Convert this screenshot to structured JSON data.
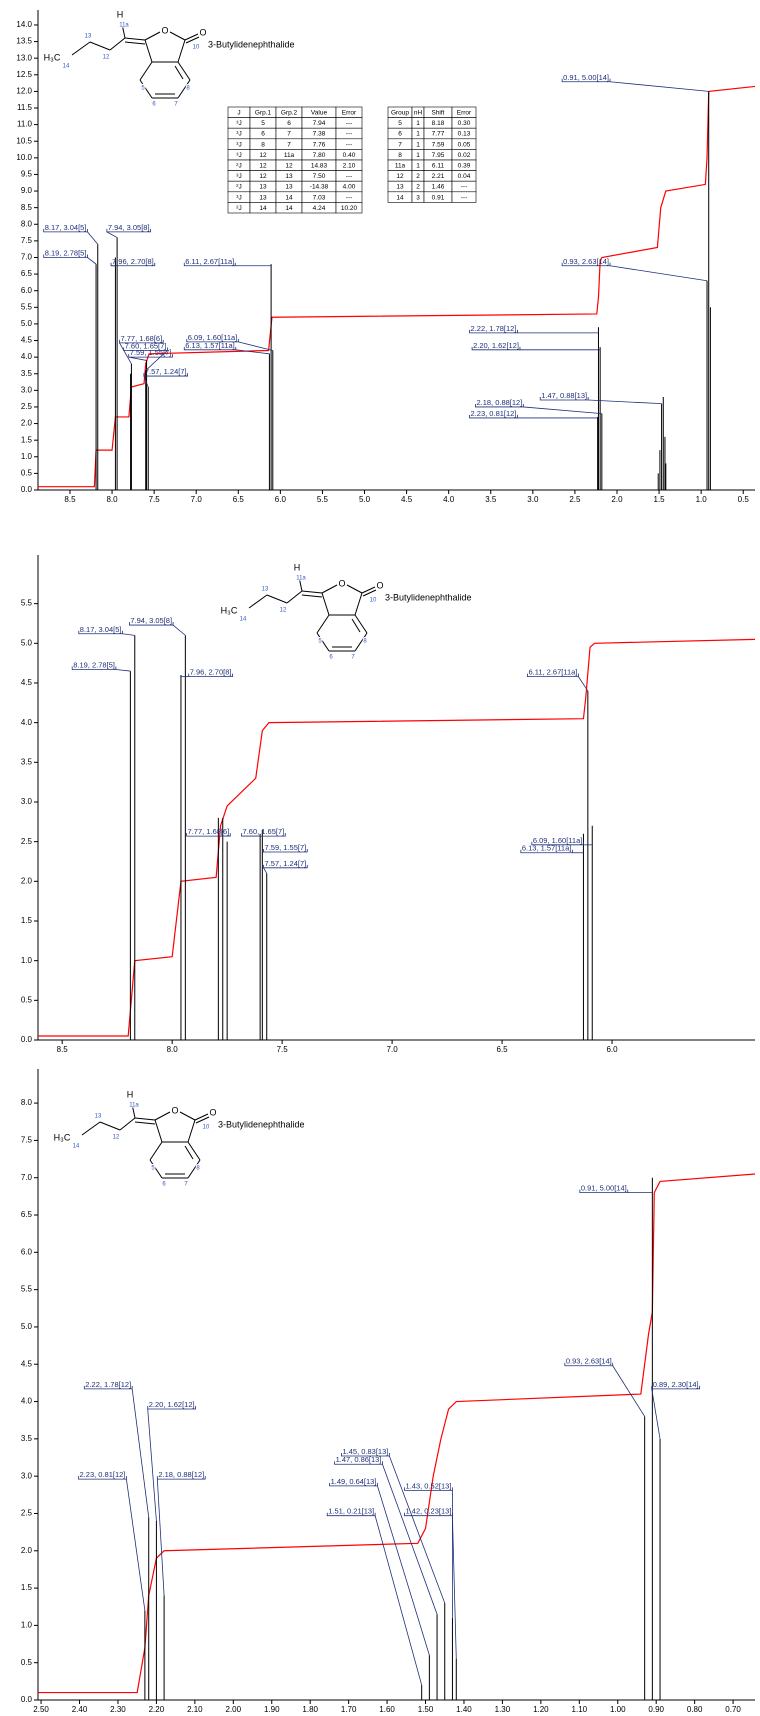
{
  "chart_data": [
    {
      "type": "spectrum",
      "xlim": [
        8.88,
        0.36
      ],
      "ylim": [
        0,
        14.3
      ],
      "xticks": [
        8.5,
        {
          "value": 8,
          "label": "8.0"
        },
        7.5,
        {
          "value": 7,
          "label": "7.0"
        },
        6.5,
        {
          "value": 6,
          "label": "6.0"
        },
        5.5,
        {
          "value": 5,
          "label": "5.0"
        },
        4.5,
        {
          "value": 4,
          "label": "4.0"
        },
        3.5,
        {
          "value": 3,
          "label": "3.0"
        },
        2.5,
        {
          "value": 2,
          "label": "2.0"
        },
        1.5,
        {
          "value": 1,
          "label": "1.0"
        },
        0.5
      ],
      "yticks": [
        {
          "value": 0,
          "label": "0.0"
        },
        0.5,
        {
          "value": 1,
          "label": "1.0"
        },
        1.5,
        {
          "value": 2,
          "label": "2.0"
        },
        2.5,
        {
          "value": 3,
          "label": "3.0"
        },
        3.5,
        {
          "value": 4,
          "label": "4.0"
        },
        4.5,
        {
          "value": 5,
          "label": "5.0"
        },
        5.5,
        {
          "value": 6,
          "label": "6.0"
        },
        6.5,
        {
          "value": 7,
          "label": "7.0"
        },
        7.5,
        {
          "value": 8,
          "label": "8.0"
        },
        8.5,
        {
          "value": 9,
          "label": "9.0"
        },
        9.5,
        {
          "value": 10,
          "label": "10.0"
        },
        10.5,
        {
          "value": 11,
          "label": "11.0"
        },
        11.5,
        {
          "value": 12,
          "label": "12.0"
        },
        12.5,
        {
          "value": 13,
          "label": "13.0"
        },
        13.5,
        {
          "value": 14,
          "label": "14.0"
        }
      ],
      "peaks": {
        "color": "#000000",
        "x": [
          8.19,
          8.17,
          7.96,
          7.94,
          7.78,
          7.77,
          7.6,
          7.59,
          7.57,
          6.13,
          6.11,
          6.09,
          2.23,
          2.22,
          2.2,
          2.18,
          1.51,
          1.49,
          1.47,
          1.45,
          1.43,
          1.42,
          0.93,
          0.91,
          0.89
        ],
        "values": [
          6.8,
          7.4,
          7.0,
          7.6,
          3.5,
          3.8,
          3.6,
          3.9,
          3.1,
          4.1,
          6.8,
          4.2,
          2.2,
          4.9,
          4.3,
          2.3,
          0.5,
          1.2,
          2.6,
          2.8,
          1.6,
          0.8,
          6.3,
          12.0,
          5.5
        ]
      },
      "integral": {
        "color": "#ff0000",
        "x": [
          8.88,
          8.21,
          8.19,
          8.0,
          7.96,
          7.8,
          7.77,
          7.62,
          7.6,
          7.56,
          6.14,
          6.1,
          2.24,
          2.22,
          2.2,
          2.18,
          1.52,
          1.48,
          1.42,
          0.95,
          0.93,
          0.91,
          0.36
        ],
        "values": [
          0.1,
          0.1,
          1.2,
          1.2,
          2.2,
          2.2,
          3.1,
          3.2,
          3.8,
          4.1,
          4.2,
          5.2,
          5.3,
          5.8,
          6.9,
          7.0,
          7.3,
          8.5,
          9.0,
          9.2,
          10.0,
          12.0,
          12.15
        ]
      },
      "annotations": [
        {
          "text": "8.17, 3.04[5]",
          "x": 8.17,
          "tx": 8.8,
          "ty": 7.77
        },
        {
          "text": "8.19, 2.78[5]",
          "x": 8.19,
          "tx": 8.8,
          "ty": 7.0
        },
        {
          "text": "7.94, 3.05[8]",
          "x": 7.94,
          "tx": 8.05,
          "ty": 7.77
        },
        {
          "text": "7.96, 2.70[8]",
          "x": 7.96,
          "tx": 8.0,
          "ty": 6.75
        },
        {
          "text": "6.11, 2.67[11a]",
          "x": 6.11,
          "tx": 7.13,
          "ty": 6.75
        },
        {
          "text": "7.77, 1.68[6]",
          "x": 7.77,
          "tx": 7.9,
          "ty": 4.43
        },
        {
          "text": "7.60, 1.65[7]",
          "x": 7.6,
          "tx": 7.85,
          "ty": 4.2
        },
        {
          "text": "7.59, 1.55[7]",
          "x": 7.59,
          "tx": 7.79,
          "ty": 4.0
        },
        {
          "text": "7.57, 1.24[7]",
          "x": 7.57,
          "tx": 7.61,
          "ty": 3.43
        },
        {
          "text": "6.09, 1.60[11a]",
          "x": 6.09,
          "tx": 7.1,
          "ty": 4.46
        },
        {
          "text": "6.13, 1.57[11a]",
          "x": 6.13,
          "tx": 7.13,
          "ty": 4.22
        },
        {
          "text": "2.22, 1.78[12]",
          "x": 2.22,
          "tx": 3.74,
          "ty": 4.73
        },
        {
          "text": "2.20, 1.62[12]",
          "x": 2.2,
          "tx": 3.71,
          "ty": 4.22
        },
        {
          "text": "2.18, 0.88[12]",
          "x": 2.18,
          "tx": 3.67,
          "ty": 2.5
        },
        {
          "text": "2.23, 0.81[12]",
          "x": 2.23,
          "tx": 3.74,
          "ty": 2.17
        },
        {
          "text": "1.47, 0.88[13]",
          "x": 1.47,
          "tx": 2.9,
          "ty": 2.71
        },
        {
          "text": "0.91, 5.00[14]",
          "x": 0.91,
          "tx": 2.64,
          "ty": 12.29
        },
        {
          "text": "0.93, 2.63[14]",
          "x": 0.93,
          "tx": 2.64,
          "ty": 6.75
        }
      ],
      "structure": {
        "name": "3-Butylidenephthalide",
        "labels": [
          "H",
          "11a",
          "13",
          "12",
          "H₃C",
          "14",
          "O",
          "O",
          "10",
          "5",
          "6",
          "7",
          "8"
        ]
      },
      "tables": [
        {
          "header": [
            "J",
            "Grp.1",
            "Grp.2",
            "Value",
            "Error"
          ],
          "rows": [
            [
              "³J",
              "5",
              "6",
              "7.94",
              "---"
            ],
            [
              "³J",
              "6",
              "7",
              "7.38",
              "---"
            ],
            [
              "³J",
              "8",
              "7",
              "7.76",
              "---"
            ],
            [
              "³J",
              "12",
              "11a",
              "7.80",
              "0.40"
            ],
            [
              "²J",
              "12",
              "12",
              "14.83",
              "2.10"
            ],
            [
              "³J",
              "12",
              "13",
              "7.50",
              "---"
            ],
            [
              "²J",
              "13",
              "13",
              "-14.38",
              "4.00"
            ],
            [
              "³J",
              "13",
              "14",
              "7.03",
              "---"
            ],
            [
              "²J",
              "14",
              "14",
              "4.24",
              "10.20"
            ]
          ]
        },
        {
          "header": [
            "Group",
            "nH",
            "Shift",
            "Error"
          ],
          "rows": [
            [
              "5",
              "1",
              "8.18",
              "0.30"
            ],
            [
              "6",
              "1",
              "7.77",
              "0.13"
            ],
            [
              "7",
              "1",
              "7.59",
              "0.05"
            ],
            [
              "8",
              "1",
              "7.95",
              "0.02"
            ],
            [
              "11a",
              "1",
              "6.11",
              "0.39"
            ],
            [
              "12",
              "2",
              "2.21",
              "0.04"
            ],
            [
              "13",
              "2",
              "1.46",
              "---"
            ],
            [
              "14",
              "3",
              "0.91",
              "---"
            ]
          ]
        }
      ]
    },
    {
      "type": "spectrum",
      "xlim": [
        8.61,
        5.35
      ],
      "ylim": [
        0,
        6.05
      ],
      "xticks": [
        8.5,
        {
          "value": 8,
          "label": "8.0"
        },
        7.5,
        {
          "value": 7,
          "label": "7.0"
        },
        6.5,
        {
          "value": 6,
          "label": "6.0"
        }
      ],
      "yticks": [
        {
          "value": 0,
          "label": "0.0"
        },
        0.5,
        {
          "value": 1,
          "label": "1.0"
        },
        1.5,
        {
          "value": 2,
          "label": "2.0"
        },
        2.5,
        {
          "value": 3,
          "label": "3.0"
        },
        3.5,
        {
          "value": 4,
          "label": "4.0"
        },
        4.5,
        {
          "value": 5,
          "label": "5.0"
        },
        5.5
      ],
      "peaks": {
        "color": "#000000",
        "x": [
          8.19,
          8.17,
          7.96,
          7.94,
          7.79,
          7.77,
          7.75,
          7.6,
          7.59,
          7.57,
          6.13,
          6.11,
          6.09
        ],
        "values": [
          4.65,
          5.1,
          4.6,
          5.1,
          2.8,
          2.8,
          2.5,
          2.6,
          2.65,
          2.1,
          2.6,
          4.4,
          2.7
        ]
      },
      "integral": {
        "color": "#ff0000",
        "x": [
          8.61,
          8.2,
          8.17,
          8.0,
          7.96,
          7.8,
          7.78,
          7.75,
          7.62,
          7.59,
          7.56,
          6.13,
          6.12,
          6.1,
          6.08,
          5.35
        ],
        "values": [
          0.05,
          0.05,
          1.0,
          1.05,
          2.0,
          2.05,
          2.7,
          2.95,
          3.3,
          3.9,
          4.0,
          4.05,
          4.3,
          4.95,
          5.0,
          5.05
        ]
      },
      "annotations": [
        {
          "text": "8.17, 3.04[5]",
          "x": 8.17,
          "tx": 8.42,
          "ty": 5.12
        },
        {
          "text": "8.19, 2.78[5]",
          "x": 8.19,
          "tx": 8.45,
          "ty": 4.67
        },
        {
          "text": "7.94, 3.05[8]",
          "x": 7.94,
          "tx": 8.19,
          "ty": 5.23
        },
        {
          "text": "7.96, 2.70[8]",
          "x": 7.96,
          "tx": 7.92,
          "ty": 4.58
        },
        {
          "text": "7.77, 1.68[6]",
          "x": 7.77,
          "tx": 7.93,
          "ty": 2.57
        },
        {
          "text": "7.60, 1.65[7]",
          "x": 7.6,
          "tx": 7.68,
          "ty": 2.57
        },
        {
          "text": "7.59, 1.55[7]",
          "x": 7.59,
          "tx": 7.58,
          "ty": 2.37
        },
        {
          "text": "7.57, 1.24[7]",
          "x": 7.57,
          "tx": 7.58,
          "ty": 2.17
        },
        {
          "text": "6.11, 2.67[11a]",
          "x": 6.11,
          "tx": 6.38,
          "ty": 4.58
        },
        {
          "text": "6.09, 1.60[11a]",
          "x": 6.09,
          "tx": 6.36,
          "ty": 2.46
        },
        {
          "text": "6.13, 1.57[11a]",
          "x": 6.13,
          "tx": 6.41,
          "ty": 2.36
        }
      ],
      "structure": {
        "name": "3-Butylidenephthalide",
        "labels": [
          "H",
          "11a",
          "13",
          "12",
          "H₃C",
          "14",
          "O",
          "O",
          "10",
          "5",
          "6",
          "7",
          "8"
        ]
      }
    },
    {
      "type": "spectrum",
      "xlim": [
        2.508,
        0.643
      ],
      "ylim": [
        0,
        8.39
      ],
      "xticks": [
        {
          "value": 2.5,
          "label": "2.50"
        },
        {
          "value": 2.4,
          "label": "2.40"
        },
        {
          "value": 2.3,
          "label": "2.30"
        },
        {
          "value": 2.2,
          "label": "2.20"
        },
        {
          "value": 2.1,
          "label": "2.10"
        },
        {
          "value": 2,
          "label": "2.00"
        },
        {
          "value": 1.9,
          "label": "1.90"
        },
        {
          "value": 1.8,
          "label": "1.80"
        },
        {
          "value": 1.7,
          "label": "1.70"
        },
        {
          "value": 1.6,
          "label": "1.60"
        },
        {
          "value": 1.5,
          "label": "1.50"
        },
        {
          "value": 1.4,
          "label": "1.40"
        },
        {
          "value": 1.3,
          "label": "1.30"
        },
        {
          "value": 1.2,
          "label": "1.20"
        },
        {
          "value": 1.1,
          "label": "1.10"
        },
        {
          "value": 1,
          "label": "1.00"
        },
        {
          "value": 0.9,
          "label": "0.90"
        },
        {
          "value": 0.8,
          "label": "0.80"
        },
        {
          "value": 0.7,
          "label": "0.70"
        }
      ],
      "yticks": [
        {
          "value": 0,
          "label": "0.0"
        },
        0.5,
        {
          "value": 1,
          "label": "1.0"
        },
        1.5,
        {
          "value": 2,
          "label": "2.0"
        },
        2.5,
        {
          "value": 3,
          "label": "3.0"
        },
        3.5,
        {
          "value": 4,
          "label": "4.0"
        },
        4.5,
        {
          "value": 5,
          "label": "5.0"
        },
        5.5,
        {
          "value": 6,
          "label": "6.0"
        },
        6.5,
        {
          "value": 7,
          "label": "7.0"
        },
        7.5,
        {
          "value": 8,
          "label": "8.0"
        }
      ],
      "peaks": {
        "color": "#000000",
        "x": [
          2.23,
          2.22,
          2.2,
          2.18,
          1.51,
          1.49,
          1.47,
          1.45,
          1.43,
          1.42,
          0.93,
          0.91,
          0.89
        ],
        "values": [
          1.2,
          2.45,
          2.4,
          1.4,
          0.2,
          0.6,
          1.15,
          1.3,
          1.1,
          0.55,
          3.8,
          7.0,
          3.5
        ]
      },
      "integral": {
        "color": "#ff0000",
        "x": [
          2.508,
          2.25,
          2.23,
          2.22,
          2.2,
          2.18,
          1.52,
          1.5,
          1.48,
          1.46,
          1.44,
          1.42,
          0.94,
          0.92,
          0.91,
          0.905,
          0.89,
          0.643
        ],
        "values": [
          0.1,
          0.1,
          0.7,
          1.4,
          1.9,
          2.0,
          2.1,
          2.3,
          3.0,
          3.5,
          3.9,
          4.0,
          4.1,
          4.9,
          5.2,
          6.8,
          6.95,
          7.05
        ]
      },
      "annotations": [
        {
          "text": "2.22, 1.78[12]",
          "x": 2.22,
          "tx": 2.385,
          "ty": 4.17
        },
        {
          "text": "2.20, 1.62[12]",
          "x": 2.2,
          "tx": 2.22,
          "ty": 3.9
        },
        {
          "text": "2.23, 0.81[12]",
          "x": 2.23,
          "tx": 2.4,
          "ty": 2.96
        },
        {
          "text": "2.18, 0.88[12]",
          "x": 2.18,
          "tx": 2.195,
          "ty": 2.96
        },
        {
          "text": "1.45, 0.83[13]",
          "x": 1.45,
          "tx": 1.716,
          "ty": 3.27
        },
        {
          "text": "1.47, 0.86[13]",
          "x": 1.47,
          "tx": 1.734,
          "ty": 3.16
        },
        {
          "text": "1.49, 0.64[13]",
          "x": 1.49,
          "tx": 1.747,
          "ty": 2.87
        },
        {
          "text": "1.43, 0.52[13]",
          "x": 1.43,
          "tx": 1.552,
          "ty": 2.81
        },
        {
          "text": "1.51, 0.21[13]",
          "x": 1.51,
          "tx": 1.753,
          "ty": 2.47
        },
        {
          "text": "1.42, 0.23[13]",
          "x": 1.42,
          "tx": 1.552,
          "ty": 2.47
        },
        {
          "text": "0.91, 5.00[14]",
          "x": 0.91,
          "tx": 1.096,
          "ty": 6.8
        },
        {
          "text": "0.93, 2.63[14]",
          "x": 0.93,
          "tx": 1.135,
          "ty": 4.48
        },
        {
          "text": "0.89, 2.30[14]",
          "x": 0.89,
          "tx": 0.909,
          "ty": 4.17
        }
      ],
      "structure": {
        "name": "3-Butylidenephthalide",
        "labels": [
          "H",
          "11a",
          "13",
          "12",
          "H₃C",
          "14",
          "O",
          "O",
          "10",
          "5",
          "6",
          "7",
          "8"
        ]
      }
    }
  ]
}
